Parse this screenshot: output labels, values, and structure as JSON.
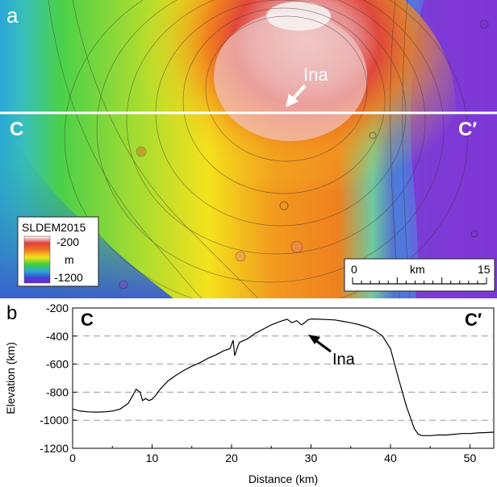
{
  "panel_a": {
    "label": "a",
    "profile_start": "C",
    "profile_end": "C′",
    "feature": "Ina",
    "legend": {
      "title": "SLDEM2015",
      "max": "-200",
      "unit": "m",
      "min": "-1200",
      "colors": [
        "#ffffff",
        "#e03c3c",
        "#f07a1e",
        "#f4e21c",
        "#3fd03a",
        "#2aa7d8",
        "#3a49cf",
        "#7a1fd6"
      ]
    },
    "scalebar": {
      "start": "0",
      "unit": "km",
      "end": "15"
    }
  },
  "panel_b": {
    "label": "b",
    "start": "C",
    "end": "C′",
    "annotation": "Ina",
    "chart_data": {
      "type": "line",
      "xlabel": "Distance (km)",
      "ylabel": "Elevation (km)",
      "xlim": [
        0,
        53
      ],
      "ylim": [
        -1200,
        -200
      ],
      "xticks": [
        "0",
        "10",
        "20",
        "30",
        "40",
        "50"
      ],
      "yticks": [
        "-200",
        "-400",
        "-600",
        "-800",
        "-1000",
        "-1200"
      ],
      "grid": "horizontal dashed",
      "series": [
        {
          "x": [
            0,
            1,
            2,
            3,
            4,
            5,
            6,
            7,
            7.5,
            8,
            8.5,
            8.8,
            9.2,
            9.6,
            10,
            10.5,
            11,
            12,
            13,
            14,
            15,
            16,
            17,
            18,
            19,
            19.8,
            20.2,
            20.4,
            20.8,
            21,
            22,
            23,
            24,
            25,
            26,
            27,
            27.6,
            28.2,
            28.8,
            29.2,
            29.6,
            30,
            31,
            32,
            33,
            34,
            35,
            36,
            37,
            38,
            39,
            40,
            41,
            42,
            43,
            43.5,
            44,
            45,
            46,
            47,
            48,
            49,
            50,
            51,
            52,
            53
          ],
          "y": [
            -920,
            -935,
            -940,
            -942,
            -940,
            -935,
            -920,
            -880,
            -830,
            -780,
            -800,
            -860,
            -845,
            -860,
            -850,
            -820,
            -780,
            -720,
            -680,
            -645,
            -615,
            -590,
            -560,
            -535,
            -505,
            -490,
            -430,
            -540,
            -470,
            -445,
            -420,
            -380,
            -350,
            -320,
            -298,
            -280,
            -305,
            -290,
            -320,
            -305,
            -285,
            -278,
            -280,
            -282,
            -285,
            -295,
            -305,
            -318,
            -335,
            -360,
            -400,
            -490,
            -700,
            -900,
            -1060,
            -1100,
            -1110,
            -1110,
            -1105,
            -1105,
            -1100,
            -1095,
            -1095,
            -1090,
            -1088,
            -1085
          ]
        }
      ],
      "annotations": [
        {
          "text": "Ina",
          "x": 29,
          "y": -320
        }
      ]
    }
  }
}
